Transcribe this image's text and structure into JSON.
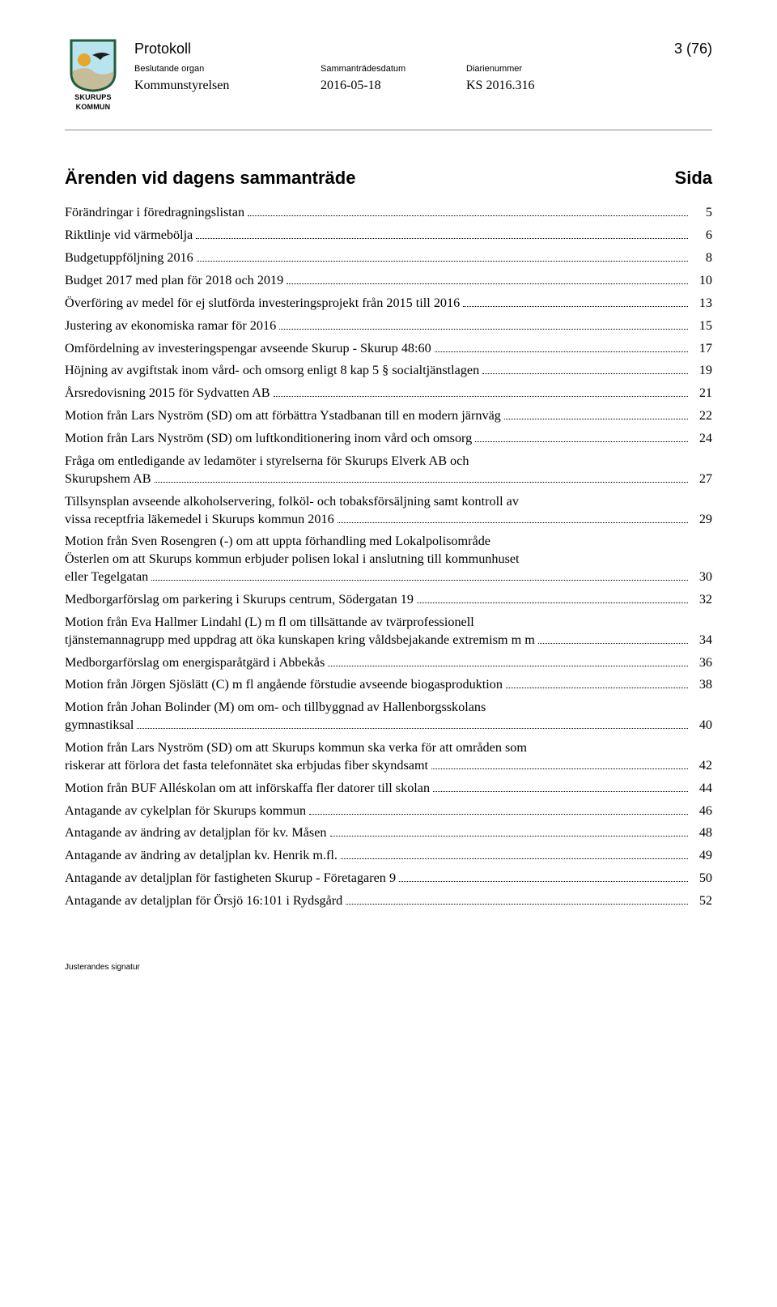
{
  "header": {
    "logo_top": "SKURUPS",
    "logo_bottom": "KOMMUN",
    "title": "Protokoll",
    "page_indicator": "3 (76)",
    "col1_label": "Beslutande organ",
    "col1_value": "Kommunstyrelsen",
    "col2_label": "Sammanträdesdatum",
    "col2_value": "2016-05-18",
    "col3_label": "Diarienummer",
    "col3_value": "KS 2016.316"
  },
  "section": {
    "heading": "Ärenden vid dagens sammanträde",
    "heading_right": "Sida"
  },
  "toc": [
    {
      "lines": [
        "Förändringar i föredragningslistan"
      ],
      "page": "5"
    },
    {
      "lines": [
        "Riktlinje vid värmebölja"
      ],
      "page": "6"
    },
    {
      "lines": [
        "Budgetuppföljning 2016"
      ],
      "page": "8"
    },
    {
      "lines": [
        "Budget 2017 med plan för 2018 och 2019"
      ],
      "page": "10"
    },
    {
      "lines": [
        "Överföring av medel för ej slutförda investeringsprojekt från 2015 till 2016"
      ],
      "page": "13"
    },
    {
      "lines": [
        "Justering av ekonomiska ramar för 2016"
      ],
      "page": "15"
    },
    {
      "lines": [
        "Omfördelning av investeringspengar avseende Skurup - Skurup 48:60"
      ],
      "page": "17"
    },
    {
      "lines": [
        "Höjning av avgiftstak inom vård- och omsorg enligt 8 kap 5 § socialtjänstlagen"
      ],
      "page": "19"
    },
    {
      "lines": [
        "Årsredovisning 2015 för Sydvatten AB"
      ],
      "page": "21"
    },
    {
      "lines": [
        "Motion från Lars Nyström (SD) om att förbättra Ystadbanan till en modern järnväg"
      ],
      "page": "22"
    },
    {
      "lines": [
        "Motion från Lars Nyström (SD) om luftkonditionering inom vård och omsorg"
      ],
      "page": "24"
    },
    {
      "lines": [
        "Fråga om entledigande av ledamöter i styrelserna för Skurups Elverk AB och",
        "Skurupshem AB"
      ],
      "page": "27"
    },
    {
      "lines": [
        "Tillsynsplan avseende alkoholservering, folköl- och tobaksförsäljning samt kontroll av",
        "vissa receptfria läkemedel i Skurups kommun 2016"
      ],
      "page": "29"
    },
    {
      "lines": [
        "Motion från Sven Rosengren (-) om att uppta förhandling med Lokalpolisområde",
        "Österlen om att Skurups kommun erbjuder polisen lokal i anslutning till kommunhuset",
        "eller Tegelgatan"
      ],
      "page": "30"
    },
    {
      "lines": [
        "Medborgarförslag om parkering i Skurups centrum, Södergatan 19"
      ],
      "page": "32"
    },
    {
      "lines": [
        "Motion från Eva Hallmer Lindahl (L) m fl om tillsättande av tvärprofessionell",
        "tjänstemannagrupp med uppdrag att öka kunskapen kring våldsbejakande extremism m m"
      ],
      "page": "34"
    },
    {
      "lines": [
        "Medborgarförslag om energisparåtgärd i Abbekås"
      ],
      "page": "36"
    },
    {
      "lines": [
        "Motion från Jörgen Sjöslätt (C) m fl angående förstudie avseende biogasproduktion"
      ],
      "page": "38"
    },
    {
      "lines": [
        "Motion från Johan Bolinder (M) om om- och tillbyggnad av Hallenborgsskolans",
        "gymnastiksal"
      ],
      "page": "40"
    },
    {
      "lines": [
        "Motion från Lars Nyström (SD) om att Skurups kommun ska verka för att områden som",
        "riskerar att förlora det fasta telefonnätet ska erbjudas fiber skyndsamt"
      ],
      "page": "42"
    },
    {
      "lines": [
        "Motion från BUF Alléskolan om att införskaffa fler datorer till skolan"
      ],
      "page": "44"
    },
    {
      "lines": [
        "Antagande av cykelplan för Skurups kommun"
      ],
      "page": "46"
    },
    {
      "lines": [
        "Antagande av ändring av detaljplan för kv. Måsen"
      ],
      "page": "48"
    },
    {
      "lines": [
        "Antagande av ändring av detaljplan kv. Henrik m.fl."
      ],
      "page": "49"
    },
    {
      "lines": [
        "Antagande av detaljplan för fastigheten Skurup - Företagaren 9"
      ],
      "page": "50"
    },
    {
      "lines": [
        "Antagande av detaljplan för Örsjö 16:101 i Rydsgård"
      ],
      "page": "52"
    }
  ],
  "footer": {
    "signature_label": "Justerandes signatur"
  },
  "colors": {
    "text": "#000000",
    "background": "#ffffff",
    "divider": "#8a8a8a",
    "logo_border": "#1f5c3a",
    "logo_sky": "#b7e4ef",
    "logo_land": "#c7bc9a",
    "logo_sun": "#e7a62d",
    "logo_bird": "#1c1c1c"
  }
}
